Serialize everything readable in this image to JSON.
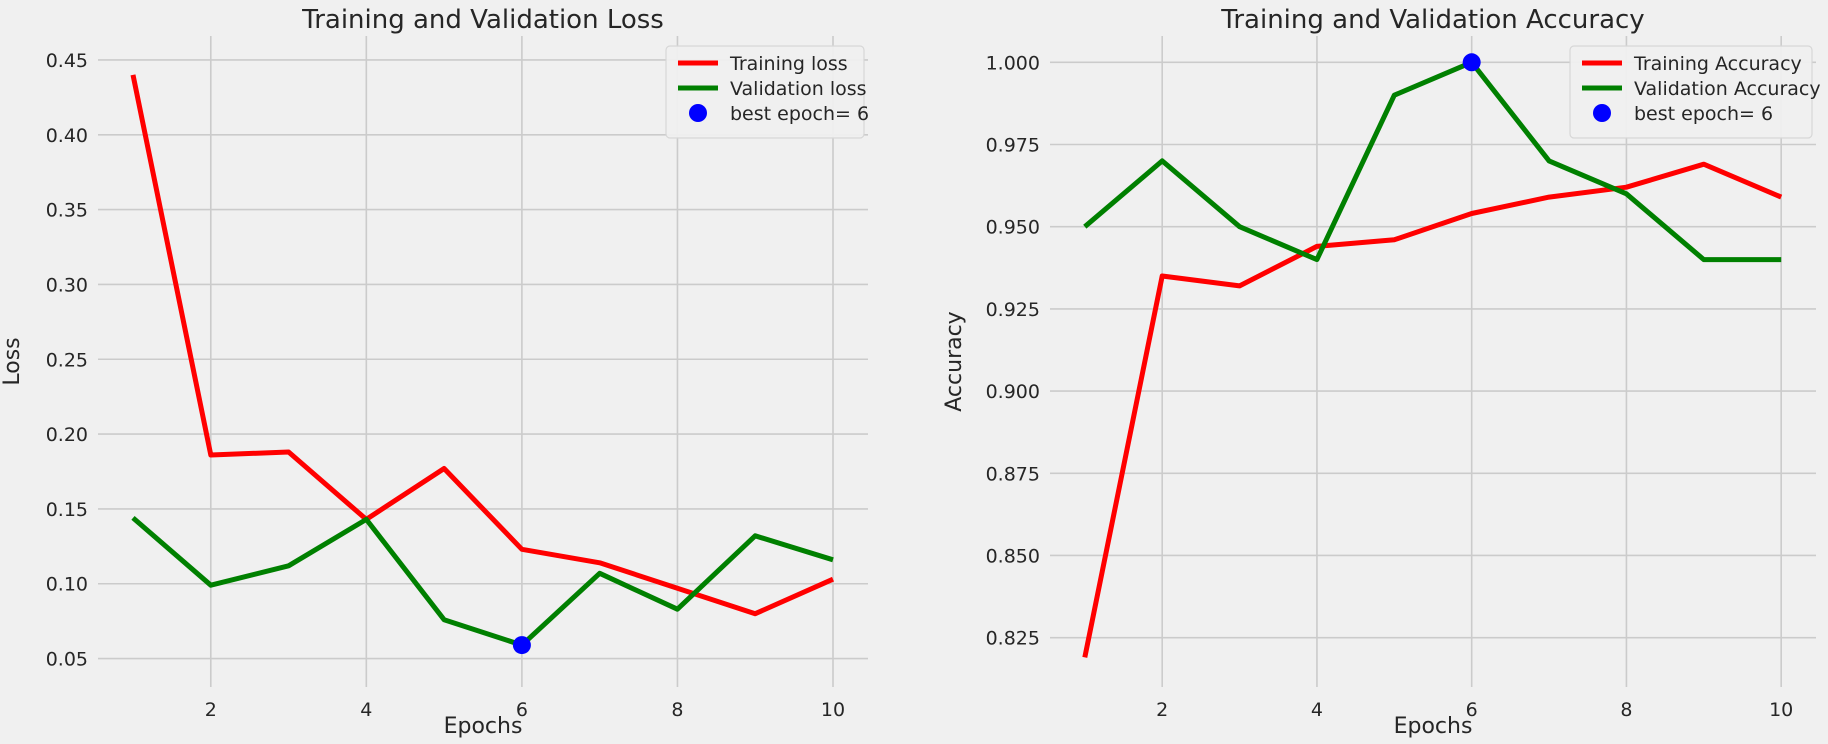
{
  "chart_data": [
    {
      "type": "line",
      "title": "Training and Validation Loss",
      "xlabel": "Epochs",
      "ylabel": "Loss",
      "x": [
        1,
        2,
        3,
        4,
        5,
        6,
        7,
        8,
        9,
        10
      ],
      "xlim": [
        0.55,
        10.45
      ],
      "ylim": [
        0.031,
        0.466
      ],
      "xticks": [
        "2",
        "4",
        "6",
        "8",
        "10"
      ],
      "xtick_values": [
        2,
        4,
        6,
        8,
        10
      ],
      "yticks": [
        "0.05",
        "0.10",
        "0.15",
        "0.20",
        "0.25",
        "0.30",
        "0.35",
        "0.40",
        "0.45"
      ],
      "ytick_values": [
        0.05,
        0.1,
        0.15,
        0.2,
        0.25,
        0.3,
        0.35,
        0.4,
        0.45
      ],
      "grid": true,
      "legend_position": "top-right",
      "series": [
        {
          "name": "Training loss",
          "color": "#ff0000",
          "values": [
            0.44,
            0.186,
            0.188,
            0.143,
            0.177,
            0.123,
            0.114,
            0.097,
            0.08,
            0.103
          ]
        },
        {
          "name": "Validation loss",
          "color": "#008000",
          "values": [
            0.144,
            0.099,
            0.112,
            0.143,
            0.076,
            0.059,
            0.107,
            0.083,
            0.132,
            0.116
          ]
        }
      ],
      "marker": {
        "label": "best epoch= 6",
        "color": "#0000ff",
        "x": 6,
        "y": 0.059
      }
    },
    {
      "type": "line",
      "title": "Training and Validation Accuracy",
      "xlabel": "Epochs",
      "ylabel": "Accuracy",
      "x": [
        1,
        2,
        3,
        4,
        5,
        6,
        7,
        8,
        9,
        10
      ],
      "xlim": [
        0.55,
        10.45
      ],
      "ylim": [
        0.81,
        1.008
      ],
      "xticks": [
        "2",
        "4",
        "6",
        "8",
        "10"
      ],
      "xtick_values": [
        2,
        4,
        6,
        8,
        10
      ],
      "yticks": [
        "0.825",
        "0.850",
        "0.875",
        "0.900",
        "0.925",
        "0.950",
        "0.975",
        "1.000"
      ],
      "ytick_values": [
        0.825,
        0.85,
        0.875,
        0.9,
        0.925,
        0.95,
        0.975,
        1.0
      ],
      "grid": true,
      "legend_position": "top-right",
      "series": [
        {
          "name": "Training Accuracy",
          "color": "#ff0000",
          "values": [
            0.819,
            0.935,
            0.932,
            0.944,
            0.946,
            0.954,
            0.959,
            0.962,
            0.969,
            0.959
          ]
        },
        {
          "name": "Validation Accuracy",
          "color": "#008000",
          "values": [
            0.95,
            0.97,
            0.95,
            0.94,
            0.99,
            1.0,
            0.97,
            0.96,
            0.94,
            0.94
          ]
        }
      ],
      "marker": {
        "label": "best epoch= 6",
        "color": "#0000ff",
        "x": 6,
        "y": 1.0
      }
    }
  ]
}
